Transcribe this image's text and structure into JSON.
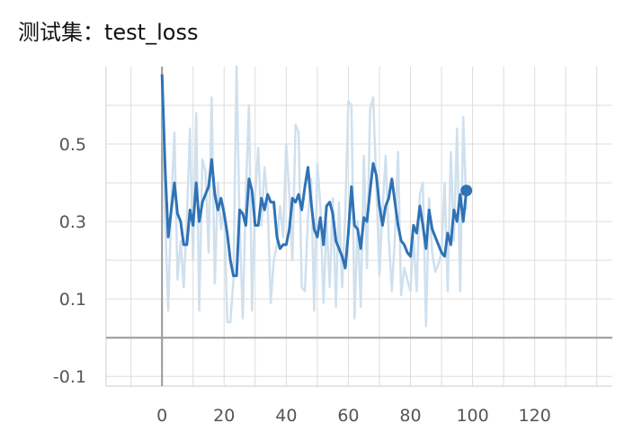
{
  "title": "测试集：test_loss",
  "chart_data": {
    "type": "line",
    "title": "测试集：test_loss",
    "xlabel": "",
    "ylabel": "",
    "xlim": [
      -18,
      145
    ],
    "ylim": [
      -0.125,
      0.7
    ],
    "grid": true,
    "x_ticks": [
      0,
      20,
      40,
      60,
      80,
      100,
      120
    ],
    "x_tick_labels": [
      "0",
      "20",
      "40",
      "60",
      "80",
      "100",
      "120"
    ],
    "y_ticks": [
      -0.1,
      0.1,
      0.3,
      0.5
    ],
    "y_tick_labels": [
      "-0.1",
      "0.1",
      "0.3",
      "0.5"
    ],
    "colors": {
      "smoothed": "#2f72b5",
      "raw": "#cfe0ee",
      "zero_axis": "#999999",
      "grid": "#dddddd"
    },
    "series": [
      {
        "role": "raw",
        "x": [
          0,
          1,
          2,
          3,
          4,
          5,
          6,
          7,
          8,
          9,
          10,
          11,
          12,
          13,
          14,
          15,
          16,
          17,
          18,
          19,
          20,
          21,
          22,
          23,
          24,
          25,
          26,
          27,
          28,
          29,
          30,
          31,
          32,
          33,
          34,
          35,
          36,
          37,
          38,
          39,
          40,
          41,
          42,
          43,
          44,
          45,
          46,
          47,
          48,
          49,
          50,
          51,
          52,
          53,
          54,
          55,
          56,
          57,
          58,
          59,
          60,
          61,
          62,
          63,
          64,
          65,
          66,
          67,
          68,
          69,
          70,
          71,
          72,
          73,
          74,
          75,
          76,
          77,
          78,
          79,
          80,
          81,
          82,
          83,
          84,
          85,
          86,
          87,
          88,
          89,
          90,
          91,
          92,
          93,
          94,
          95,
          96,
          97,
          98
        ],
        "y": [
          0.68,
          0.31,
          0.07,
          0.35,
          0.53,
          0.15,
          0.25,
          0.13,
          0.31,
          0.54,
          0.2,
          0.58,
          0.07,
          0.46,
          0.43,
          0.22,
          0.62,
          0.14,
          0.4,
          0.28,
          0.34,
          0.04,
          0.04,
          0.15,
          0.7,
          0.29,
          0.05,
          0.37,
          0.6,
          0.07,
          0.37,
          0.49,
          0.29,
          0.44,
          0.35,
          0.09,
          0.2,
          0.24,
          0.34,
          0.26,
          0.5,
          0.37,
          0.2,
          0.55,
          0.53,
          0.13,
          0.12,
          0.31,
          0.41,
          0.07,
          0.45,
          0.34,
          0.09,
          0.3,
          0.13,
          0.36,
          0.08,
          0.35,
          0.13,
          0.32,
          0.61,
          0.6,
          0.05,
          0.3,
          0.08,
          0.47,
          0.18,
          0.59,
          0.62,
          0.4,
          0.16,
          0.33,
          0.47,
          0.26,
          0.12,
          0.26,
          0.48,
          0.11,
          0.18,
          0.15,
          0.12,
          0.26,
          0.12,
          0.37,
          0.4,
          0.03,
          0.36,
          0.22,
          0.17,
          0.19,
          0.22,
          0.4,
          0.12,
          0.48,
          0.25,
          0.54,
          0.12,
          0.57,
          0.33
        ]
      },
      {
        "role": "smoothed",
        "x": [
          0,
          1,
          2,
          3,
          4,
          5,
          6,
          7,
          8,
          9,
          10,
          11,
          12,
          13,
          14,
          15,
          16,
          17,
          18,
          19,
          20,
          21,
          22,
          23,
          24,
          25,
          26,
          27,
          28,
          29,
          30,
          31,
          32,
          33,
          34,
          35,
          36,
          37,
          38,
          39,
          40,
          41,
          42,
          43,
          44,
          45,
          46,
          47,
          48,
          49,
          50,
          51,
          52,
          53,
          54,
          55,
          56,
          57,
          58,
          59,
          60,
          61,
          62,
          63,
          64,
          65,
          66,
          67,
          68,
          69,
          70,
          71,
          72,
          73,
          74,
          75,
          76,
          77,
          78,
          79,
          80,
          81,
          82,
          83,
          84,
          85,
          86,
          87,
          88,
          89,
          90,
          91,
          92,
          93,
          94,
          95,
          96,
          97,
          98
        ],
        "y": [
          0.68,
          0.44,
          0.26,
          0.33,
          0.4,
          0.32,
          0.3,
          0.24,
          0.24,
          0.33,
          0.29,
          0.4,
          0.3,
          0.35,
          0.37,
          0.39,
          0.46,
          0.37,
          0.33,
          0.36,
          0.32,
          0.27,
          0.2,
          0.16,
          0.16,
          0.33,
          0.32,
          0.29,
          0.41,
          0.38,
          0.29,
          0.29,
          0.36,
          0.33,
          0.37,
          0.35,
          0.35,
          0.26,
          0.23,
          0.24,
          0.24,
          0.28,
          0.36,
          0.35,
          0.37,
          0.33,
          0.39,
          0.44,
          0.35,
          0.28,
          0.26,
          0.31,
          0.24,
          0.34,
          0.35,
          0.32,
          0.25,
          0.23,
          0.21,
          0.18,
          0.27,
          0.39,
          0.29,
          0.28,
          0.23,
          0.31,
          0.3,
          0.38,
          0.45,
          0.42,
          0.34,
          0.29,
          0.34,
          0.36,
          0.41,
          0.35,
          0.29,
          0.25,
          0.24,
          0.22,
          0.21,
          0.29,
          0.27,
          0.34,
          0.29,
          0.23,
          0.33,
          0.28,
          0.26,
          0.24,
          0.22,
          0.21,
          0.27,
          0.24,
          0.33,
          0.3,
          0.37,
          0.3,
          0.38
        ]
      }
    ]
  }
}
